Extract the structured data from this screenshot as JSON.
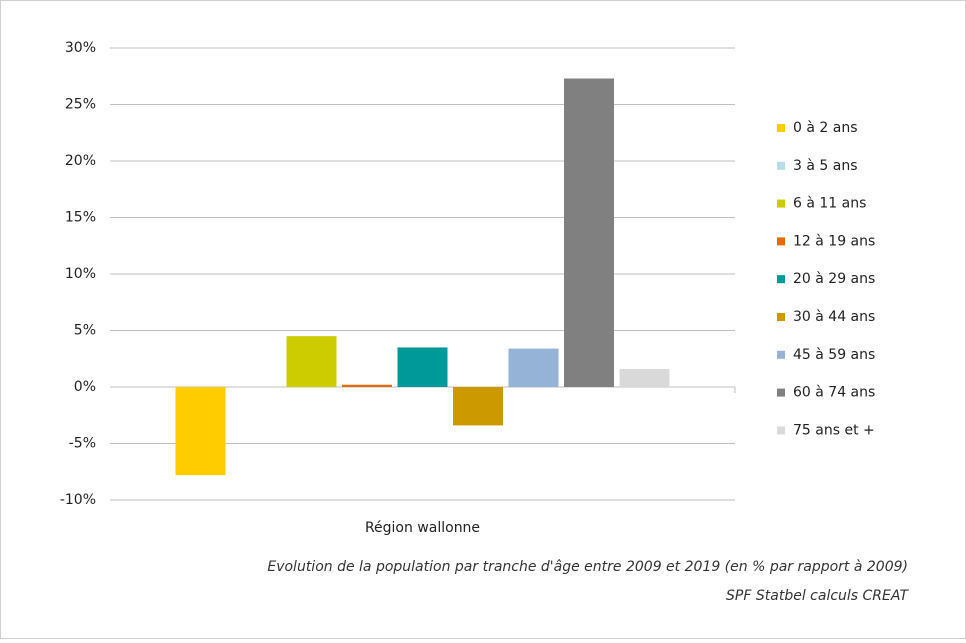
{
  "chart_data": {
    "type": "bar",
    "categories": [
      "Région wallonne"
    ],
    "series": [
      {
        "name": "0 à 2 ans",
        "color": "#ffcc00",
        "values": [
          -7.8
        ]
      },
      {
        "name": "3 à 5 ans",
        "color": "#b7dde8",
        "values": [
          0
        ]
      },
      {
        "name": "6 à 11 ans",
        "color": "#cccc00",
        "values": [
          4.5
        ]
      },
      {
        "name": "12 à 19 ans",
        "color": "#e36c0a",
        "values": [
          0.2
        ]
      },
      {
        "name": "20 à 29 ans",
        "color": "#009999",
        "values": [
          3.5
        ]
      },
      {
        "name": "30 à 44 ans",
        "color": "#cc9900",
        "values": [
          -3.4
        ]
      },
      {
        "name": "45 à 59 ans",
        "color": "#95b3d7",
        "values": [
          3.4
        ]
      },
      {
        "name": "60 à 74 ans",
        "color": "#808080",
        "values": [
          27.3
        ]
      },
      {
        "name": "75 ans et +",
        "color": "#d9d9d9",
        "values": [
          1.6
        ]
      }
    ],
    "ylim": [
      -10,
      30
    ],
    "yticks": [
      {
        "value": -10,
        "label": "-10%"
      },
      {
        "value": -5,
        "label": "-5%"
      },
      {
        "value": 0,
        "label": "0%"
      },
      {
        "value": 5,
        "label": "5%"
      },
      {
        "value": 10,
        "label": "10%"
      },
      {
        "value": 15,
        "label": "15%"
      },
      {
        "value": 20,
        "label": "20%"
      },
      {
        "value": 25,
        "label": "25%"
      },
      {
        "value": 30,
        "label": "30%"
      }
    ],
    "grid": true,
    "legend": "right",
    "caption": [
      "Evolution  de la population  par tranche  d'âge entre  2009 et 2019  (en % par rapport à 2009)",
      "SPF Statbel  calculs CREAT"
    ]
  }
}
